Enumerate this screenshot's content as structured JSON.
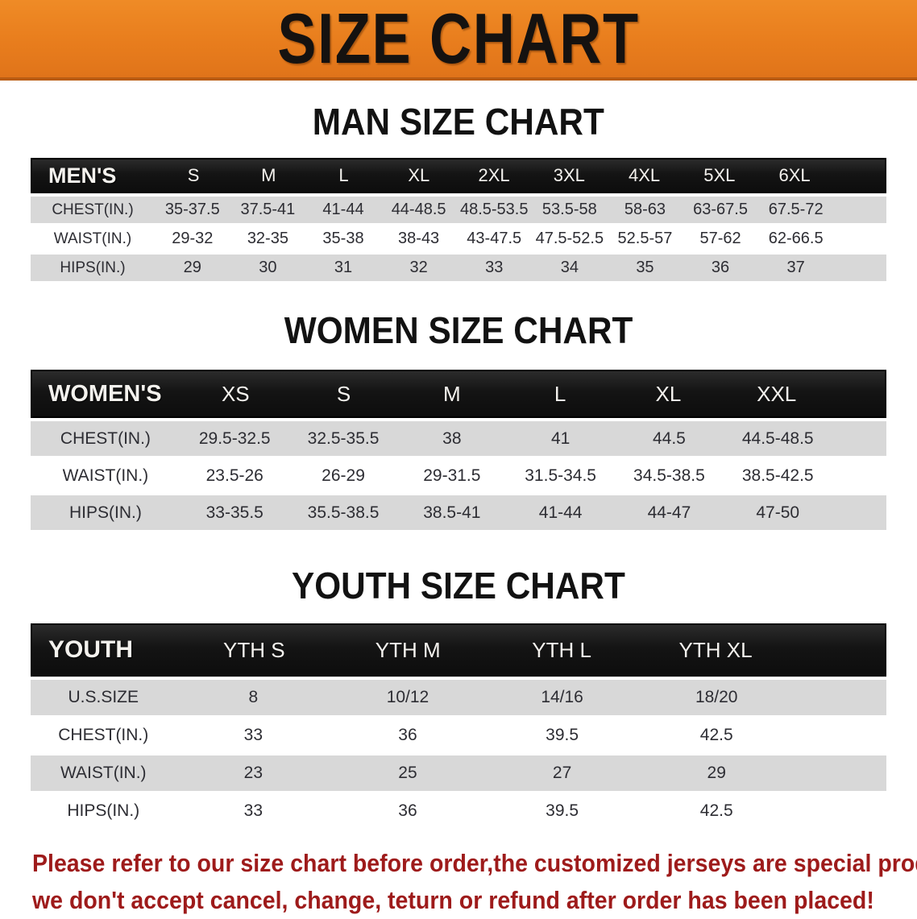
{
  "banner": {
    "title": "SIZE CHART",
    "bg_color": "#e87d1d",
    "border_color": "#b95c12",
    "text_color": "#151210"
  },
  "colors": {
    "table_header_bg": "#141414",
    "table_header_text": "#f4f2ee",
    "row_stripe": "#d8d8d8",
    "body_text": "#2d2d33",
    "disclaimer_text": "#9e1b1b"
  },
  "sections": [
    {
      "heading": "MAN SIZE CHART",
      "table": {
        "header_label": "MEN'S",
        "columns": [
          "S",
          "M",
          "L",
          "XL",
          "2XL",
          "3XL",
          "4XL",
          "5XL",
          "6XL"
        ],
        "rows": [
          {
            "label": "CHEST(IN.)",
            "values": [
              "35-37.5",
              "37.5-41",
              "41-44",
              "44-48.5",
              "48.5-53.5",
              "53.5-58",
              "58-63",
              "63-67.5",
              "67.5-72"
            ]
          },
          {
            "label": "WAIST(IN.)",
            "values": [
              "29-32",
              "32-35",
              "35-38",
              "38-43",
              "43-47.5",
              "47.5-52.5",
              "52.5-57",
              "57-62",
              "62-66.5"
            ]
          },
          {
            "label": "HIPS(IN.)",
            "values": [
              "29",
              "30",
              "31",
              "32",
              "33",
              "34",
              "35",
              "36",
              "37"
            ]
          }
        ]
      }
    },
    {
      "heading": "WOMEN SIZE CHART",
      "table": {
        "header_label": "WOMEN'S",
        "columns": [
          "XS",
          "S",
          "M",
          "L",
          "XL",
          "XXL"
        ],
        "rows": [
          {
            "label": "CHEST(IN.)",
            "values": [
              "29.5-32.5",
              "32.5-35.5",
              "38",
              "41",
              "44.5",
              "44.5-48.5"
            ]
          },
          {
            "label": "WAIST(IN.)",
            "values": [
              "23.5-26",
              "26-29",
              "29-31.5",
              "31.5-34.5",
              "34.5-38.5",
              "38.5-42.5"
            ]
          },
          {
            "label": "HIPS(IN.)",
            "values": [
              "33-35.5",
              "35.5-38.5",
              "38.5-41",
              "41-44",
              "44-47",
              "47-50"
            ]
          }
        ]
      }
    },
    {
      "heading": "YOUTH SIZE CHART",
      "table": {
        "header_label": "YOUTH",
        "columns": [
          "YTH S",
          "YTH M",
          "YTH L",
          "YTH XL"
        ],
        "rows": [
          {
            "label": "U.S.SIZE",
            "values": [
              "8",
              "10/12",
              "14/16",
              "18/20"
            ]
          },
          {
            "label": "CHEST(IN.)",
            "values": [
              "33",
              "36",
              "39.5",
              "42.5"
            ]
          },
          {
            "label": "WAIST(IN.)",
            "values": [
              "23",
              "25",
              "27",
              "29"
            ]
          },
          {
            "label": "HIPS(IN.)",
            "values": [
              "33",
              "36",
              "39.5",
              "42.5"
            ]
          }
        ]
      }
    }
  ],
  "disclaimer": {
    "line1": "Please refer to our size chart before order,the customized jerseys are special products,",
    "line2": "we don't accept cancel, change, teturn or refund after order has been placed!"
  }
}
